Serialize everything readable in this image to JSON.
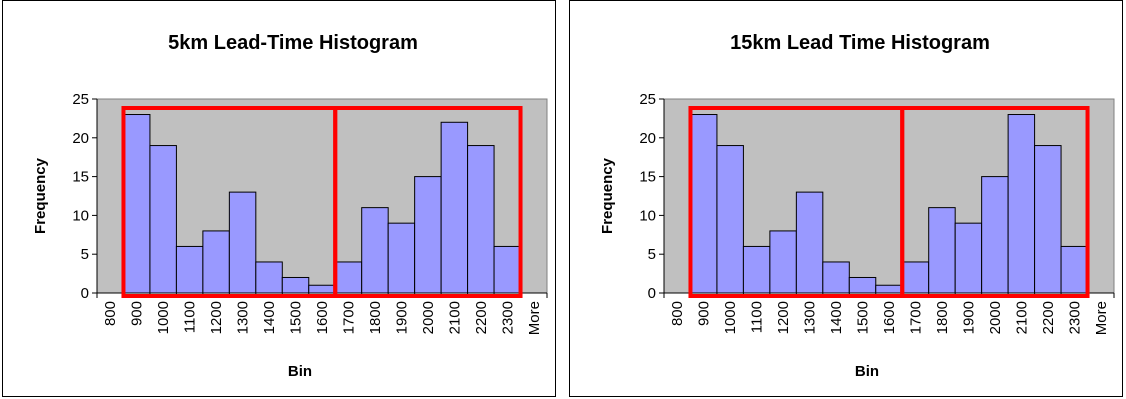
{
  "chart_data": [
    {
      "type": "bar",
      "title": "5km Lead-Time Histogram",
      "xlabel": "Bin",
      "ylabel": "Frequency",
      "ylim": [
        0,
        25
      ],
      "yticks": [
        "0",
        "5",
        "10",
        "15",
        "20",
        "25"
      ],
      "categories": [
        "800",
        "900",
        "1000",
        "1100",
        "1200",
        "1300",
        "1400",
        "1500",
        "1600",
        "1700",
        "1800",
        "1900",
        "2000",
        "2100",
        "2200",
        "2300",
        "More"
      ],
      "values": [
        0,
        23,
        19,
        6,
        8,
        13,
        4,
        2,
        1,
        4,
        11,
        9,
        15,
        22,
        19,
        6,
        0
      ],
      "bar_color": "#9999ff",
      "plot_background": "#c0c0c0",
      "highlight_color": "#ff0000",
      "highlight_groups": [
        [
          "900",
          "1600"
        ],
        [
          "1700",
          "2300"
        ]
      ]
    },
    {
      "type": "bar",
      "title": "15km Lead Time Histogram",
      "xlabel": "Bin",
      "ylabel": "Frequency",
      "ylim": [
        0,
        25
      ],
      "yticks": [
        "0",
        "5",
        "10",
        "15",
        "20",
        "25"
      ],
      "categories": [
        "800",
        "900",
        "1000",
        "1100",
        "1200",
        "1300",
        "1400",
        "1500",
        "1600",
        "1700",
        "1800",
        "1900",
        "2000",
        "2100",
        "2200",
        "2300",
        "More"
      ],
      "values": [
        0,
        23,
        19,
        6,
        8,
        13,
        4,
        2,
        1,
        4,
        11,
        9,
        15,
        23,
        19,
        6,
        0
      ],
      "bar_color": "#9999ff",
      "plot_background": "#c0c0c0",
      "highlight_color": "#ff0000",
      "highlight_groups": [
        [
          "900",
          "1600"
        ],
        [
          "1700",
          "2300"
        ]
      ]
    }
  ]
}
